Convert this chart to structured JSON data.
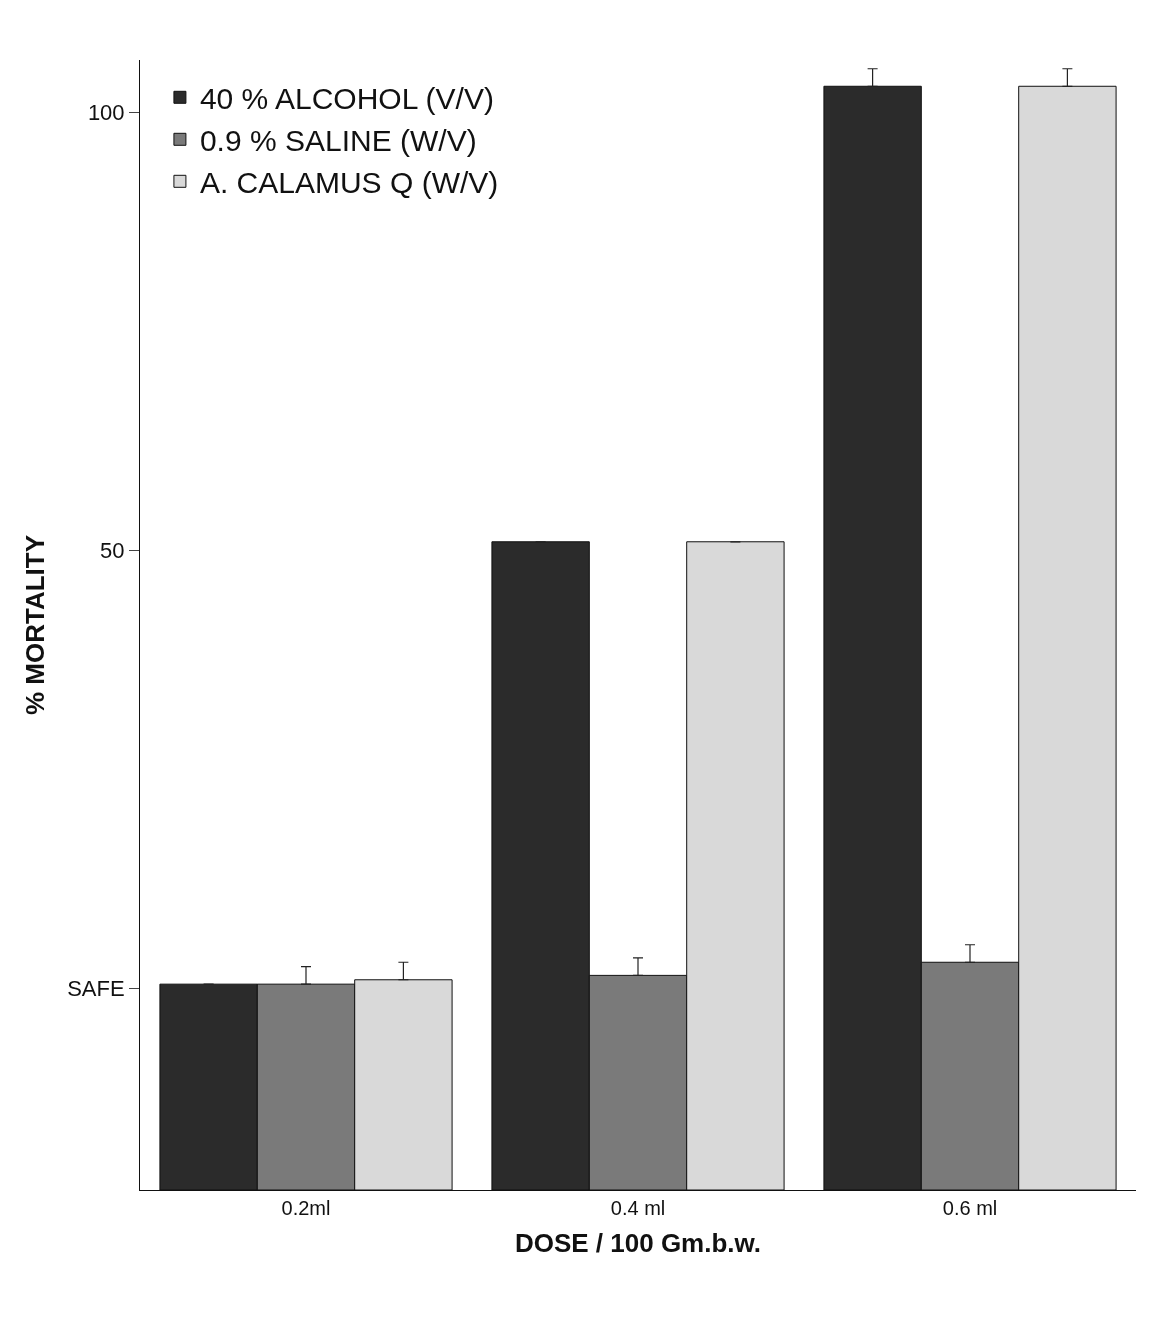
{
  "chart_data": {
    "type": "bar",
    "xlabel": "DOSE / 100 Gm.b.w.",
    "ylabel": "% MORTALITY",
    "categories": [
      "0.2ml",
      "0.4 ml",
      "0.6 ml"
    ],
    "series": [
      {
        "name": "40 % ALCOHOL (V/V)",
        "color": "#2b2b2b",
        "values": [
          23.5,
          74,
          126
        ],
        "base": [
          -23,
          -23,
          -23
        ],
        "errors": [
          null,
          null,
          2
        ]
      },
      {
        "name": "0.9 % SALINE (W/V)",
        "color": "#7a7a7a",
        "values": [
          23.5,
          24.5,
          26
        ],
        "base": [
          -23,
          -23,
          -23
        ],
        "errors": [
          2,
          2,
          2
        ]
      },
      {
        "name": "A. CALAMUS Q (W/V)",
        "color": "#d9d9d9",
        "values": [
          24,
          74,
          126
        ],
        "base": [
          -23,
          -23,
          -23
        ],
        "errors": [
          2,
          null,
          2
        ]
      }
    ],
    "ylim": [
      -23,
      106
    ],
    "yticks": [
      {
        "value": 0,
        "label": "SAFE"
      },
      50,
      100
    ],
    "legend": "top left"
  }
}
